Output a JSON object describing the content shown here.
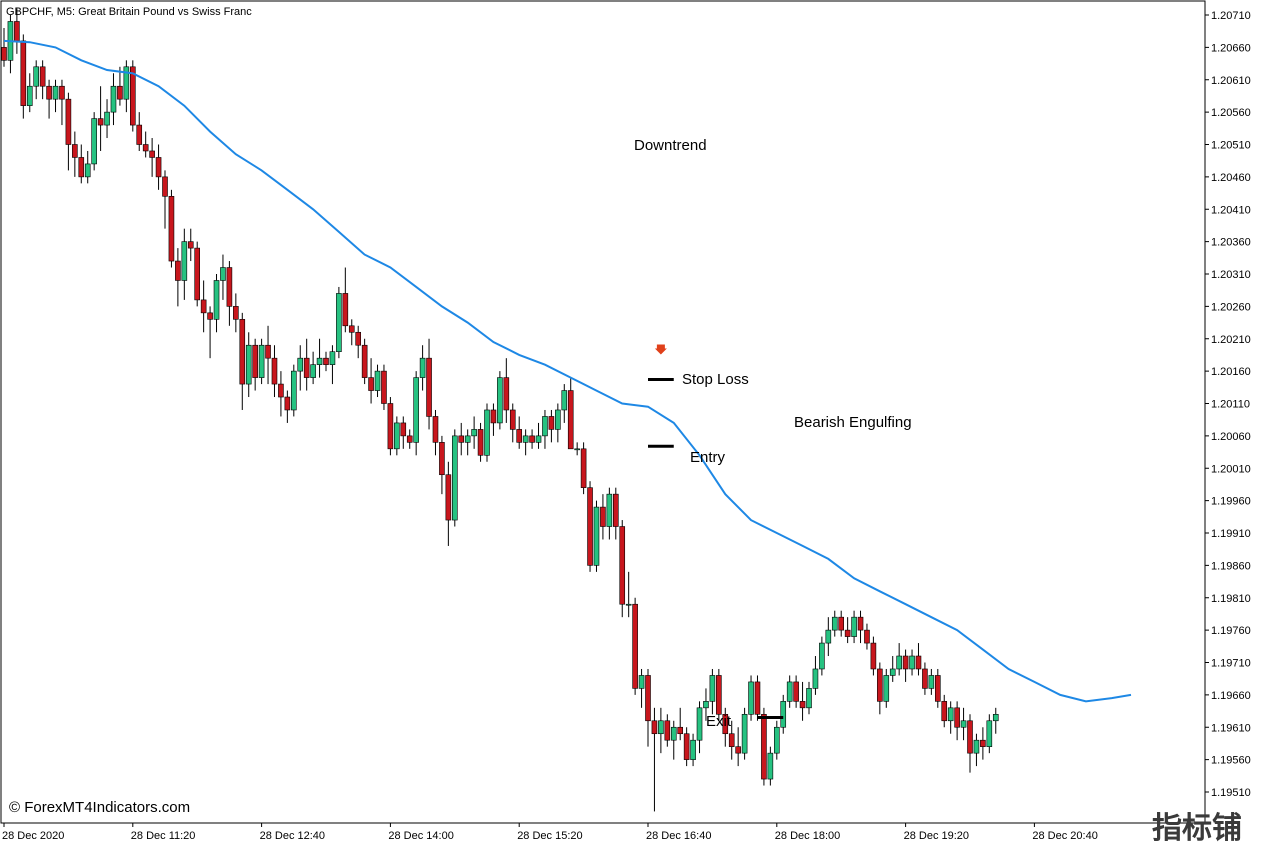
{
  "window": {
    "title": "GBPCHF, M5:  Great Britain Pound vs Swiss Franc",
    "copyright": "© ForexMT4Indicators.com",
    "watermark": "指标铺"
  },
  "colors": {
    "bull": "#26c281",
    "bear": "#c8161d",
    "wick": "#000000",
    "ma": "#1e88e5",
    "arrow": "#e0401a",
    "grid_frame": "#000000"
  },
  "chart_data": {
    "type": "candlestick",
    "title": "GBPCHF, M5:  Great Britain Pound vs Swiss Franc",
    "ylim": [
      1.1948,
      1.20735
    ],
    "y_ticks": [
      1.2071,
      1.2066,
      1.2061,
      1.2056,
      1.2051,
      1.2046,
      1.2041,
      1.2036,
      1.2031,
      1.2026,
      1.2021,
      1.2016,
      1.2011,
      1.2006,
      1.2001,
      1.1996,
      1.1991,
      1.1986,
      1.1981,
      1.1976,
      1.1971,
      1.1966,
      1.1961,
      1.1956,
      1.1951
    ],
    "y_tick_labels": [
      "1.20710",
      "1.20660",
      "1.20610",
      "1.20560",
      "1.20510",
      "1.20460",
      "1.20410",
      "1.20360",
      "1.20310",
      "1.20260",
      "1.20210",
      "1.20160",
      "1.20110",
      "1.20060",
      "1.20010",
      "1.19960",
      "1.19910",
      "1.19860",
      "1.19810",
      "1.19760",
      "1.19710",
      "1.19660",
      "1.19610",
      "1.19560",
      "1.19510"
    ],
    "x_tick_labels": [
      {
        "bar": 0,
        "label": "28 Dec 2020"
      },
      {
        "bar": 20,
        "label": "28 Dec 11:20"
      },
      {
        "bar": 40,
        "label": "28 Dec 12:40"
      },
      {
        "bar": 60,
        "label": "28 Dec 14:00"
      },
      {
        "bar": 80,
        "label": "28 Dec 15:20"
      },
      {
        "bar": 100,
        "label": "28 Dec 16:40"
      },
      {
        "bar": 120,
        "label": "28 Dec 18:00"
      },
      {
        "bar": 140,
        "label": "28 Dec 19:20"
      },
      {
        "bar": 160,
        "label": "28 Dec 20:40"
      }
    ],
    "candles": [
      [
        1.2066,
        1.2069,
        1.2063,
        1.2064
      ],
      [
        1.2064,
        1.2071,
        1.2062,
        1.207
      ],
      [
        1.207,
        1.2072,
        1.2065,
        1.2067
      ],
      [
        1.2067,
        1.2068,
        1.2055,
        1.2057
      ],
      [
        1.2057,
        1.2062,
        1.2056,
        1.206
      ],
      [
        1.206,
        1.2064,
        1.2058,
        1.2063
      ],
      [
        1.2063,
        1.2064,
        1.2058,
        1.206
      ],
      [
        1.206,
        1.2061,
        1.2055,
        1.2058
      ],
      [
        1.2058,
        1.2061,
        1.2056,
        1.206
      ],
      [
        1.206,
        1.2061,
        1.2054,
        1.2058
      ],
      [
        1.2058,
        1.2059,
        1.2047,
        1.2051
      ],
      [
        1.2051,
        1.2053,
        1.2046,
        1.2049
      ],
      [
        1.2049,
        1.2051,
        1.2045,
        1.2046
      ],
      [
        1.2046,
        1.205,
        1.2045,
        1.2048
      ],
      [
        1.2048,
        1.2056,
        1.2047,
        1.2055
      ],
      [
        1.2055,
        1.206,
        1.205,
        1.2054
      ],
      [
        1.2054,
        1.2058,
        1.2052,
        1.2056
      ],
      [
        1.2056,
        1.2062,
        1.2054,
        1.206
      ],
      [
        1.206,
        1.2063,
        1.2057,
        1.2058
      ],
      [
        1.2058,
        1.2064,
        1.2056,
        1.2063
      ],
      [
        1.2063,
        1.2064,
        1.2053,
        1.2054
      ],
      [
        1.2054,
        1.2056,
        1.205,
        1.2051
      ],
      [
        1.2051,
        1.2053,
        1.2049,
        1.205
      ],
      [
        1.205,
        1.2052,
        1.2046,
        1.2049
      ],
      [
        1.2049,
        1.2051,
        1.2044,
        1.2046
      ],
      [
        1.2046,
        1.2047,
        1.2038,
        1.2043
      ],
      [
        1.2043,
        1.2044,
        1.2032,
        1.2033
      ],
      [
        1.2033,
        1.2035,
        1.2026,
        1.203
      ],
      [
        1.203,
        1.2038,
        1.2027,
        1.2036
      ],
      [
        1.2036,
        1.2038,
        1.2033,
        1.2035
      ],
      [
        1.2035,
        1.2036,
        1.2026,
        1.2027
      ],
      [
        1.2027,
        1.203,
        1.2022,
        1.2025
      ],
      [
        1.2025,
        1.2026,
        1.2018,
        1.2024
      ],
      [
        1.2024,
        1.2031,
        1.2022,
        1.203
      ],
      [
        1.203,
        1.2034,
        1.2027,
        1.2032
      ],
      [
        1.2032,
        1.2033,
        1.2023,
        1.2026
      ],
      [
        1.2026,
        1.2028,
        1.2022,
        1.2024
      ],
      [
        1.2024,
        1.2025,
        1.201,
        1.2014
      ],
      [
        1.2014,
        1.2022,
        1.2012,
        1.202
      ],
      [
        1.202,
        1.2021,
        1.2013,
        1.2015
      ],
      [
        1.2015,
        1.2021,
        1.2014,
        1.202
      ],
      [
        1.202,
        1.2023,
        1.2014,
        1.2018
      ],
      [
        1.2018,
        1.202,
        1.2012,
        1.2014
      ],
      [
        1.2014,
        1.2016,
        1.2009,
        1.2012
      ],
      [
        1.2012,
        1.2013,
        1.2008,
        1.201
      ],
      [
        1.201,
        1.2017,
        1.2009,
        1.2016
      ],
      [
        1.2016,
        1.202,
        1.2013,
        1.2018
      ],
      [
        1.2018,
        1.2021,
        1.2013,
        1.2015
      ],
      [
        1.2015,
        1.2019,
        1.2014,
        1.2017
      ],
      [
        1.2017,
        1.2021,
        1.2015,
        1.2018
      ],
      [
        1.2018,
        1.2019,
        1.2016,
        1.2017
      ],
      [
        1.2017,
        1.202,
        1.2014,
        1.2019
      ],
      [
        1.2019,
        1.2029,
        1.2018,
        1.2028
      ],
      [
        1.2028,
        1.2032,
        1.2022,
        1.2023
      ],
      [
        1.2023,
        1.2024,
        1.202,
        1.2022
      ],
      [
        1.2022,
        1.2023,
        1.2018,
        1.202
      ],
      [
        1.202,
        1.2021,
        1.2014,
        1.2015
      ],
      [
        1.2015,
        1.2018,
        1.2011,
        1.2013
      ],
      [
        1.2013,
        1.2017,
        1.2012,
        1.2016
      ],
      [
        1.2016,
        1.2017,
        1.201,
        1.2011
      ],
      [
        1.2011,
        1.2012,
        1.2003,
        1.2004
      ],
      [
        1.2004,
        1.2009,
        1.2003,
        1.2008
      ],
      [
        1.2008,
        1.2009,
        1.2004,
        1.2006
      ],
      [
        1.2006,
        1.2007,
        1.2004,
        1.2005
      ],
      [
        1.2005,
        1.2016,
        1.2003,
        1.2015
      ],
      [
        1.2015,
        1.202,
        1.2013,
        1.2018
      ],
      [
        1.2018,
        1.2021,
        1.2007,
        1.2009
      ],
      [
        1.2009,
        1.201,
        1.2003,
        1.2005
      ],
      [
        1.2005,
        1.2006,
        1.1997,
        1.2
      ],
      [
        1.2,
        1.2002,
        1.1989,
        1.1993
      ],
      [
        1.1993,
        1.2007,
        1.1992,
        1.2006
      ],
      [
        1.2006,
        1.2008,
        1.2003,
        1.2005
      ],
      [
        1.2005,
        1.2007,
        1.2003,
        1.2006
      ],
      [
        1.2006,
        1.2009,
        1.2004,
        1.2007
      ],
      [
        1.2007,
        1.2008,
        1.2002,
        1.2003
      ],
      [
        1.2003,
        1.2011,
        1.2002,
        1.201
      ],
      [
        1.201,
        1.2011,
        1.2006,
        1.2008
      ],
      [
        1.2008,
        1.2016,
        1.2007,
        1.2015
      ],
      [
        1.2015,
        1.2018,
        1.2008,
        1.201
      ],
      [
        1.201,
        1.2011,
        1.2005,
        1.2007
      ],
      [
        1.2007,
        1.2009,
        1.2004,
        1.2005
      ],
      [
        1.2005,
        1.2007,
        1.2003,
        1.2006
      ],
      [
        1.2006,
        1.2007,
        1.2004,
        1.2005
      ],
      [
        1.2005,
        1.2008,
        1.2004,
        1.2006
      ],
      [
        1.2006,
        1.201,
        1.2004,
        1.2009
      ],
      [
        1.2009,
        1.201,
        1.2005,
        1.2007
      ],
      [
        1.2007,
        1.2011,
        1.2005,
        1.201
      ],
      [
        1.201,
        1.2014,
        1.2008,
        1.2013
      ],
      [
        1.2013,
        1.2015,
        1.2004,
        1.2004
      ],
      [
        1.2004,
        1.2005,
        1.2003,
        1.2004
      ],
      [
        1.2004,
        1.2005,
        1.1997,
        1.1998
      ],
      [
        1.1998,
        1.1999,
        1.1985,
        1.1986
      ],
      [
        1.1986,
        1.1996,
        1.1985,
        1.1995
      ],
      [
        1.1995,
        1.1997,
        1.199,
        1.1992
      ],
      [
        1.1992,
        1.1998,
        1.199,
        1.1997
      ],
      [
        1.1997,
        1.1998,
        1.199,
        1.1992
      ],
      [
        1.1992,
        1.1993,
        1.1978,
        1.198
      ],
      [
        1.198,
        1.1985,
        1.1978,
        1.198
      ],
      [
        1.198,
        1.1981,
        1.1966,
        1.1967
      ],
      [
        1.1967,
        1.197,
        1.1964,
        1.1969
      ],
      [
        1.1969,
        1.197,
        1.1958,
        1.1962
      ],
      [
        1.1962,
        1.1964,
        1.1948,
        1.196
      ],
      [
        1.196,
        1.1964,
        1.1957,
        1.1962
      ],
      [
        1.1962,
        1.1963,
        1.1958,
        1.1959
      ],
      [
        1.1959,
        1.1962,
        1.1956,
        1.1961
      ],
      [
        1.1961,
        1.1964,
        1.1959,
        1.196
      ],
      [
        1.196,
        1.1961,
        1.1955,
        1.1956
      ],
      [
        1.1956,
        1.196,
        1.1955,
        1.1959
      ],
      [
        1.1959,
        1.1965,
        1.1957,
        1.1964
      ],
      [
        1.1964,
        1.1967,
        1.1962,
        1.1965
      ],
      [
        1.1965,
        1.197,
        1.1963,
        1.1969
      ],
      [
        1.1969,
        1.197,
        1.1962,
        1.1963
      ],
      [
        1.1963,
        1.1964,
        1.1958,
        1.196
      ],
      [
        1.196,
        1.1962,
        1.1956,
        1.1958
      ],
      [
        1.1958,
        1.1961,
        1.1955,
        1.1957
      ],
      [
        1.1957,
        1.1964,
        1.1956,
        1.1963
      ],
      [
        1.1963,
        1.1969,
        1.1962,
        1.1968
      ],
      [
        1.1968,
        1.1969,
        1.1962,
        1.1963
      ],
      [
        1.1963,
        1.1964,
        1.1952,
        1.1953
      ],
      [
        1.1953,
        1.1958,
        1.1952,
        1.1957
      ],
      [
        1.1957,
        1.1962,
        1.1956,
        1.1961
      ],
      [
        1.1961,
        1.1966,
        1.196,
        1.1965
      ],
      [
        1.1965,
        1.1969,
        1.1964,
        1.1968
      ],
      [
        1.1968,
        1.1969,
        1.1964,
        1.1965
      ],
      [
        1.1965,
        1.1968,
        1.1962,
        1.1964
      ],
      [
        1.1964,
        1.1968,
        1.1963,
        1.1967
      ],
      [
        1.1967,
        1.1972,
        1.1966,
        1.197
      ],
      [
        1.197,
        1.1975,
        1.1969,
        1.1974
      ],
      [
        1.1974,
        1.1978,
        1.1972,
        1.1976
      ],
      [
        1.1976,
        1.1979,
        1.1975,
        1.1978
      ],
      [
        1.1978,
        1.1979,
        1.1975,
        1.1976
      ],
      [
        1.1976,
        1.1978,
        1.1974,
        1.1975
      ],
      [
        1.1975,
        1.1979,
        1.1974,
        1.1978
      ],
      [
        1.1978,
        1.1979,
        1.1974,
        1.1976
      ],
      [
        1.1976,
        1.1977,
        1.1973,
        1.1974
      ],
      [
        1.1974,
        1.1975,
        1.1969,
        1.197
      ],
      [
        1.197,
        1.1971,
        1.1963,
        1.1965
      ],
      [
        1.1965,
        1.197,
        1.1964,
        1.1969
      ],
      [
        1.1969,
        1.1972,
        1.1968,
        1.197
      ],
      [
        1.197,
        1.1974,
        1.1969,
        1.1972
      ],
      [
        1.1972,
        1.1973,
        1.1968,
        1.197
      ],
      [
        1.197,
        1.1973,
        1.1969,
        1.1972
      ],
      [
        1.1972,
        1.1974,
        1.1969,
        1.197
      ],
      [
        1.197,
        1.1971,
        1.1966,
        1.1967
      ],
      [
        1.1967,
        1.197,
        1.1966,
        1.1969
      ],
      [
        1.1969,
        1.197,
        1.1964,
        1.1965
      ],
      [
        1.1965,
        1.1966,
        1.1961,
        1.1962
      ],
      [
        1.1962,
        1.1965,
        1.196,
        1.1964
      ],
      [
        1.1964,
        1.1965,
        1.1959,
        1.1961
      ],
      [
        1.1961,
        1.1964,
        1.1959,
        1.1962
      ],
      [
        1.1962,
        1.1963,
        1.1954,
        1.1957
      ],
      [
        1.1957,
        1.196,
        1.1955,
        1.1959
      ],
      [
        1.1959,
        1.1961,
        1.1956,
        1.1958
      ],
      [
        1.1958,
        1.1963,
        1.1957,
        1.1962
      ],
      [
        1.1962,
        1.1964,
        1.196,
        1.1963
      ]
    ],
    "ma_points": [
      [
        0,
        1.2067
      ],
      [
        4,
        1.20668
      ],
      [
        8,
        1.2066
      ],
      [
        12,
        1.2064
      ],
      [
        16,
        1.20625
      ],
      [
        20,
        1.2062
      ],
      [
        24,
        1.206
      ],
      [
        28,
        1.2057
      ],
      [
        32,
        1.2053
      ],
      [
        36,
        1.20495
      ],
      [
        40,
        1.2047
      ],
      [
        44,
        1.2044
      ],
      [
        48,
        1.2041
      ],
      [
        52,
        1.20375
      ],
      [
        56,
        1.2034
      ],
      [
        60,
        1.2032
      ],
      [
        64,
        1.2029
      ],
      [
        68,
        1.2026
      ],
      [
        72,
        1.20235
      ],
      [
        76,
        1.20205
      ],
      [
        80,
        1.20185
      ],
      [
        84,
        1.2017
      ],
      [
        88,
        1.2015
      ],
      [
        92,
        1.2013
      ],
      [
        96,
        1.2011
      ],
      [
        100,
        1.20105
      ],
      [
        104,
        1.2008
      ],
      [
        108,
        1.2003
      ],
      [
        112,
        1.1997
      ],
      [
        116,
        1.1993
      ],
      [
        120,
        1.1991
      ],
      [
        124,
        1.1989
      ],
      [
        128,
        1.1987
      ],
      [
        132,
        1.1984
      ],
      [
        136,
        1.1982
      ],
      [
        140,
        1.198
      ],
      [
        144,
        1.1978
      ],
      [
        148,
        1.1976
      ],
      [
        152,
        1.1973
      ],
      [
        156,
        1.197
      ],
      [
        160,
        1.1968
      ],
      [
        164,
        1.1966
      ],
      [
        168,
        1.1965
      ],
      [
        172,
        1.19655
      ],
      [
        175,
        1.1966
      ]
    ],
    "annotations": [
      {
        "text": "Downtrend",
        "bar": 96,
        "price": 1.20512
      },
      {
        "text": "Stop Loss",
        "bar": 103,
        "price": 1.2015
      },
      {
        "text": "Entry",
        "bar": 103,
        "price": 1.2003
      },
      {
        "text": "Bearish Engulfing",
        "bar": 118,
        "price": 1.20085
      },
      {
        "text": "Exit",
        "bar": 104,
        "price": 1.19615
      }
    ],
    "levels": [
      {
        "name": "stop-loss",
        "price": 1.20147,
        "bar_from": 100,
        "bar_to": 104
      },
      {
        "name": "entry",
        "price": 1.20044,
        "bar_from": 100,
        "bar_to": 104
      },
      {
        "name": "exit",
        "price": 1.19625,
        "bar_from": 117,
        "bar_to": 121
      }
    ],
    "signal_arrow": {
      "bar": 102,
      "price": 1.20195
    }
  }
}
